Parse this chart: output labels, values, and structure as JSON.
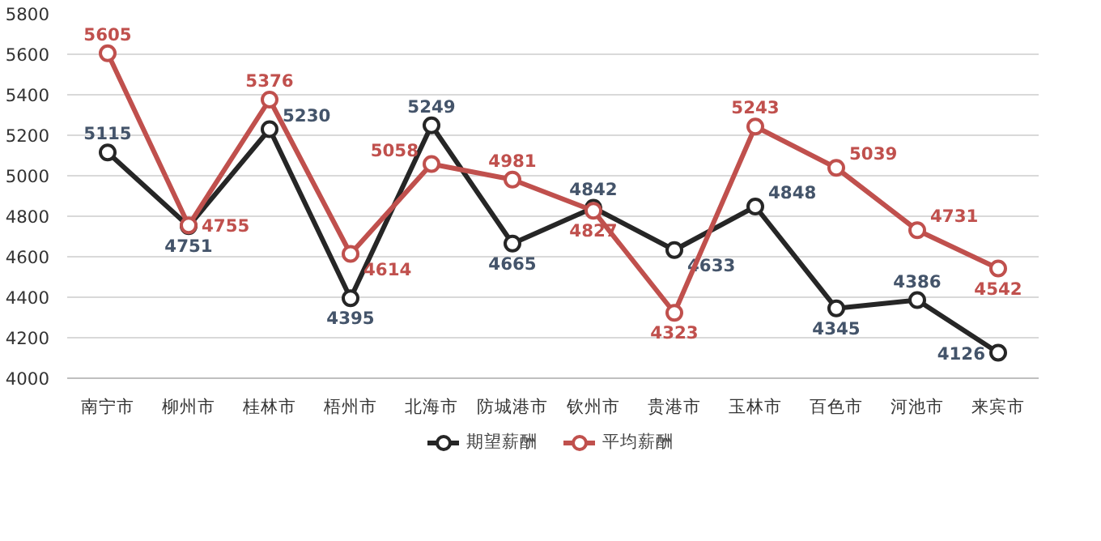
{
  "chart_data": {
    "type": "line",
    "categories": [
      "南宁市",
      "柳州市",
      "桂林市",
      "梧州市",
      "北海市",
      "防城港市",
      "钦州市",
      "贵港市",
      "玉林市",
      "百色市",
      "河池市",
      "来宾市"
    ],
    "series": [
      {
        "name": "期望薪酬",
        "color": "#262626",
        "values": [
          5115,
          4751,
          5230,
          4395,
          5249,
          4665,
          4842,
          4633,
          4848,
          4345,
          4386,
          4126
        ]
      },
      {
        "name": "平均薪酬",
        "color": "#c0504d",
        "values": [
          5605,
          4755,
          5376,
          4614,
          5058,
          4981,
          4827,
          4323,
          5243,
          5039,
          4731,
          4542
        ]
      }
    ],
    "ylim": [
      4000,
      5800
    ],
    "yticks": [
      4000,
      4200,
      4400,
      4600,
      4800,
      5000,
      5200,
      5400,
      5600,
      5800
    ],
    "grid": "y",
    "legend": "bottom",
    "marker": "circle",
    "line_style": "solid",
    "data_labels": true
  }
}
